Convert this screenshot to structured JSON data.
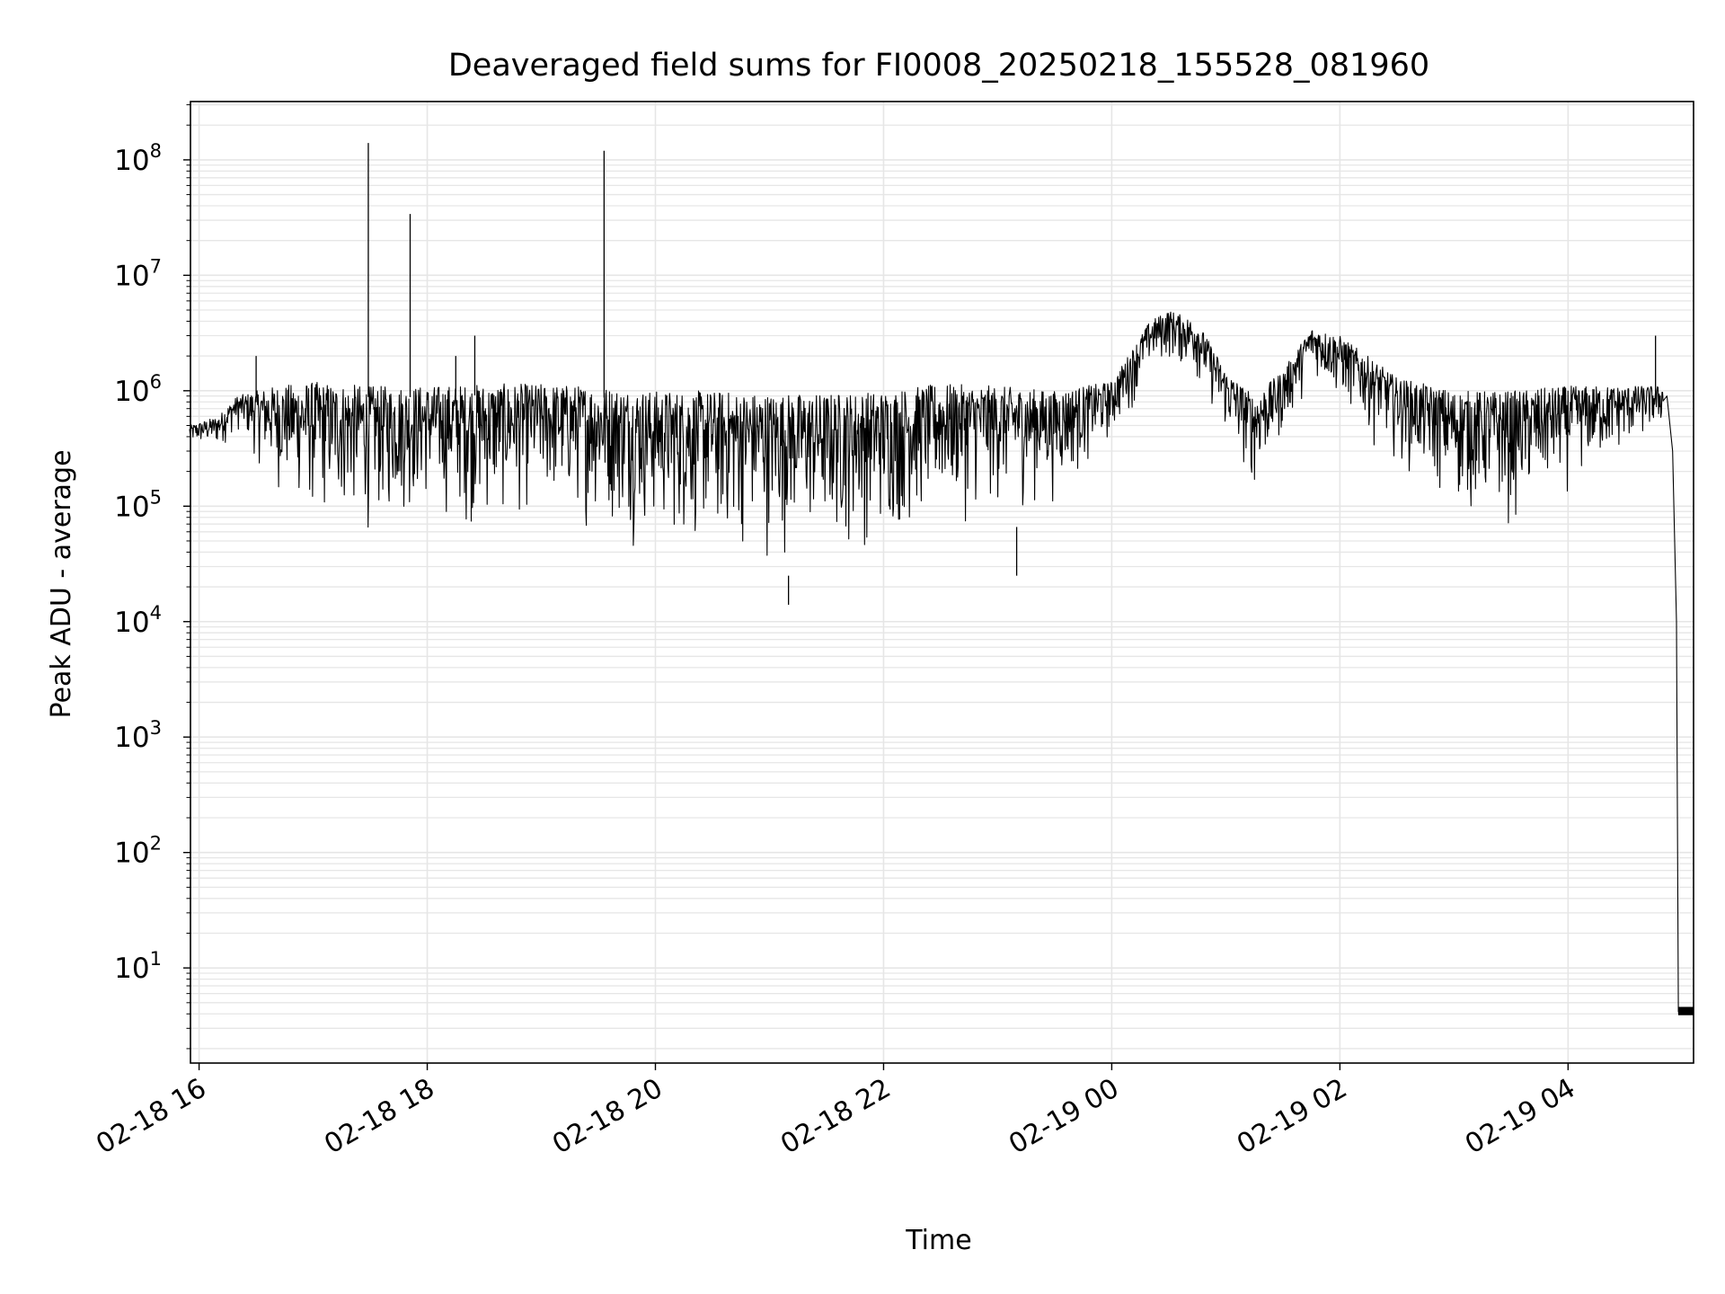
{
  "chart_data": {
    "type": "line",
    "title": "Deaveraged field sums for FI0008_20250218_155528_081960",
    "xlabel": "Time",
    "ylabel": "Peak ADU - average",
    "yscale": "log",
    "ylim": [
      1.5,
      320000000.0
    ],
    "xlim": [
      "2025-02-18 15:55:28",
      "2025-02-19 05:06:00"
    ],
    "grid": true,
    "line_color": "#000000",
    "grid_color": "#e6e6e6",
    "x_ticks": [
      "02-18 16",
      "02-18 18",
      "02-18 20",
      "02-18 22",
      "02-19 00",
      "02-19 02",
      "02-19 04"
    ],
    "x_tick_times": [
      "2025-02-18 16:00",
      "2025-02-18 18:00",
      "2025-02-18 20:00",
      "2025-02-18 22:00",
      "2025-02-19 00:00",
      "2025-02-19 02:00",
      "2025-02-19 04:00"
    ],
    "y_ticks": [
      {
        "base": "10",
        "exp": "1",
        "value": 10
      },
      {
        "base": "10",
        "exp": "2",
        "value": 100
      },
      {
        "base": "10",
        "exp": "3",
        "value": 1000
      },
      {
        "base": "10",
        "exp": "4",
        "value": 10000
      },
      {
        "base": "10",
        "exp": "5",
        "value": 100000
      },
      {
        "base": "10",
        "exp": "6",
        "value": 1000000
      },
      {
        "base": "10",
        "exp": "7",
        "value": 10000000
      },
      {
        "base": "10",
        "exp": "8",
        "value": 100000000
      }
    ],
    "series": [
      {
        "upper_envelope": [
          [
            "2025-02-18 15:55",
            500000.0
          ],
          [
            "2025-02-18 16:10",
            600000.0
          ],
          [
            "2025-02-18 16:20",
            900000.0
          ],
          [
            "2025-02-18 16:40",
            1100000.0
          ],
          [
            "2025-02-18 17:00",
            1200000.0
          ],
          [
            "2025-02-18 17:30",
            1100000.0
          ],
          [
            "2025-02-18 18:00",
            1100000.0
          ],
          [
            "2025-02-18 18:30",
            1150000.0
          ],
          [
            "2025-02-18 19:00",
            1150000.0
          ],
          [
            "2025-02-18 19:30",
            1100000.0
          ],
          [
            "2025-02-18 20:00",
            1000000.0
          ],
          [
            "2025-02-18 20:30",
            1000000.0
          ],
          [
            "2025-02-18 21:00",
            950000.0
          ],
          [
            "2025-02-18 21:30",
            950000.0
          ],
          [
            "2025-02-18 22:00",
            1000000.0
          ],
          [
            "2025-02-18 22:30",
            1150000.0
          ],
          [
            "2025-02-18 23:00",
            1100000.0
          ],
          [
            "2025-02-18 23:30",
            1000000.0
          ],
          [
            "2025-02-19 00:00",
            1200000.0
          ],
          [
            "2025-02-19 00:20",
            4000000.0
          ],
          [
            "2025-02-19 00:30",
            5000000.0
          ],
          [
            "2025-02-19 00:45",
            4000000.0
          ],
          [
            "2025-02-19 01:00",
            1500000.0
          ],
          [
            "2025-02-19 01:15",
            900000.0
          ],
          [
            "2025-02-19 01:30",
            1500000.0
          ],
          [
            "2025-02-19 01:45",
            3500000.0
          ],
          [
            "2025-02-19 02:00",
            3000000.0
          ],
          [
            "2025-02-19 02:30",
            1300000.0
          ],
          [
            "2025-02-19 03:00",
            1000000.0
          ],
          [
            "2025-02-19 03:30",
            1000000.0
          ],
          [
            "2025-02-19 04:00",
            1100000.0
          ],
          [
            "2025-02-19 04:50",
            1100000.0
          ]
        ],
        "lower_envelope": [
          [
            "2025-02-18 15:55",
            300000.0
          ],
          [
            "2025-02-18 16:10",
            270000.0
          ],
          [
            "2025-02-18 16:20",
            400000.0
          ],
          [
            "2025-02-18 16:40",
            100000.0
          ],
          [
            "2025-02-18 17:00",
            45000.0
          ],
          [
            "2025-02-18 17:30",
            40000.0
          ],
          [
            "2025-02-18 18:00",
            60000.0
          ],
          [
            "2025-02-18 18:30",
            40000.0
          ],
          [
            "2025-02-18 19:00",
            60000.0
          ],
          [
            "2025-02-18 19:30",
            45000.0
          ],
          [
            "2025-02-18 20:00",
            30000.0
          ],
          [
            "2025-02-18 20:30",
            25000.0
          ],
          [
            "2025-02-18 21:00",
            25000.0
          ],
          [
            "2025-02-18 21:30",
            25000.0
          ],
          [
            "2025-02-18 22:00",
            30000.0
          ],
          [
            "2025-02-18 22:30",
            50000.0
          ],
          [
            "2025-02-18 23:00",
            60000.0
          ],
          [
            "2025-02-18 23:30",
            80000.0
          ],
          [
            "2025-02-19 00:00",
            300000.0
          ],
          [
            "2025-02-19 00:20",
            1200000.0
          ],
          [
            "2025-02-19 00:30",
            1500000.0
          ],
          [
            "2025-02-19 00:45",
            1000000.0
          ],
          [
            "2025-02-19 01:00",
            300000.0
          ],
          [
            "2025-02-19 01:15",
            100000.0
          ],
          [
            "2025-02-19 01:30",
            300000.0
          ],
          [
            "2025-02-19 01:45",
            1200000.0
          ],
          [
            "2025-02-19 02:00",
            600000.0
          ],
          [
            "2025-02-19 02:30",
            200000.0
          ],
          [
            "2025-02-19 03:00",
            60000.0
          ],
          [
            "2025-02-19 03:30",
            45000.0
          ],
          [
            "2025-02-19 04:00",
            100000.0
          ],
          [
            "2025-02-19 04:50",
            400000.0
          ]
        ],
        "spikes": [
          [
            "2025-02-18 16:30",
            2000000.0
          ],
          [
            "2025-02-18 17:29",
            140000000.0
          ],
          [
            "2025-02-18 17:51",
            34000000.0
          ],
          [
            "2025-02-18 18:15",
            2000000.0
          ],
          [
            "2025-02-18 18:25",
            3000000.0
          ],
          [
            "2025-02-18 19:33",
            120000000.0
          ],
          [
            "2025-02-18 21:10",
            14000.0
          ],
          [
            "2025-02-18 23:10",
            25000.0
          ],
          [
            "2025-02-19 04:46",
            3000000.0
          ]
        ],
        "tail": [
          [
            "2025-02-19 04:52",
            900000.0
          ],
          [
            "2025-02-19 04:55",
            300000.0
          ],
          [
            "2025-02-19 04:57",
            10000.0
          ],
          [
            "2025-02-19 04:58",
            4.2
          ],
          [
            "2025-02-19 05:06",
            4.2
          ]
        ]
      }
    ]
  }
}
